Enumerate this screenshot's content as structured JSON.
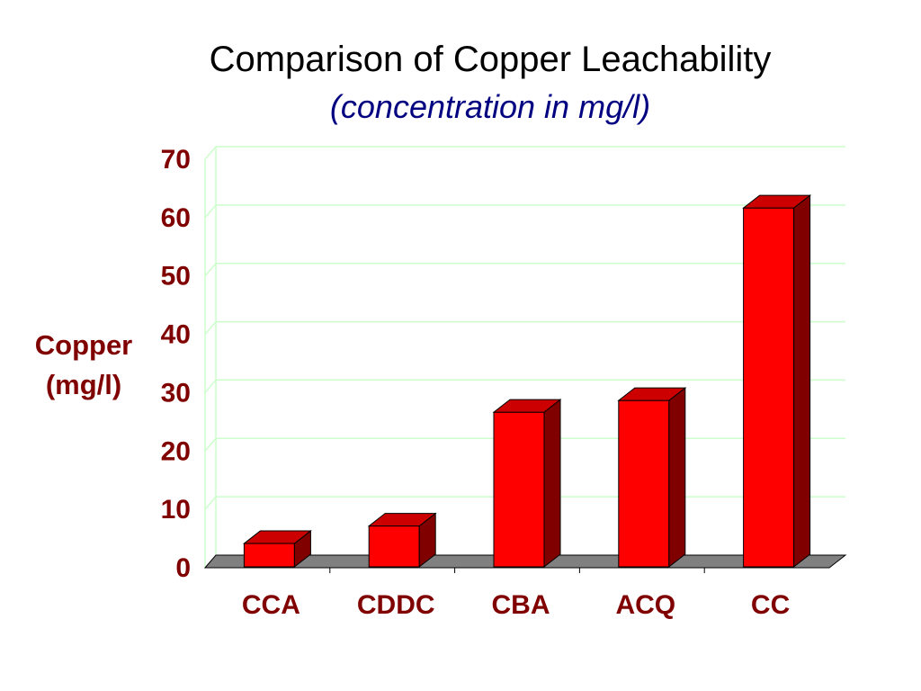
{
  "chart_data": {
    "type": "bar",
    "title": "Comparison of Copper Leachability",
    "subtitle": "(concentration in mg/l)",
    "ylabel_line1": "Copper",
    "ylabel_line2": "(mg/l)",
    "xlabel": "",
    "categories": [
      "CCA",
      "CDDC",
      "CBA",
      "ACQ",
      "CC"
    ],
    "values": [
      4,
      7,
      26.5,
      28.5,
      61.5
    ],
    "ylim": [
      0,
      70
    ],
    "yticks": [
      "0",
      "10",
      "20",
      "30",
      "40",
      "50",
      "60",
      "70"
    ],
    "grid": true,
    "legend": "none",
    "colors": {
      "bar_front": "#ff0000",
      "bar_top": "#cc0000",
      "bar_side": "#800000",
      "floor": "#808080",
      "gridline": "#ccffcc",
      "axis_text": "#800000",
      "title_text": "#000000",
      "subtitle_text": "#000080"
    }
  }
}
